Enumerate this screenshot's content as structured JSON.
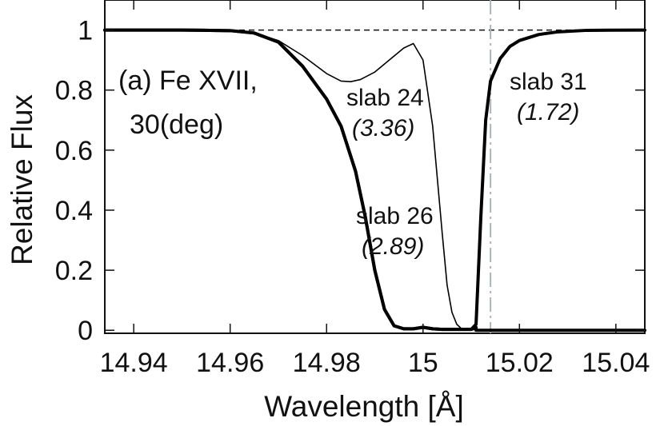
{
  "chart_data": {
    "type": "line",
    "xlabel": "Wavelength  [Å]",
    "ylabel": "Relative Flux",
    "xlim": [
      14.934,
      15.046
    ],
    "ylim": [
      -0.01,
      1.1
    ],
    "x_ticks": [
      14.94,
      14.96,
      14.98,
      15.0,
      15.02,
      15.04
    ],
    "x_tick_labels": [
      "14.94",
      "14.96",
      "14.98",
      "15",
      "15.02",
      "15.04"
    ],
    "y_ticks": [
      0,
      0.2,
      0.4,
      0.6,
      0.8,
      1.0
    ],
    "y_tick_labels": [
      "0",
      "0.2",
      "0.4",
      "0.6",
      "0.8",
      "1"
    ],
    "continuum": 1.0,
    "reference_line_x": 15.014,
    "panel_label_line1": "(a) Fe XVII,",
    "panel_label_line2": "30(deg)",
    "series": [
      {
        "name": "slab 24",
        "ratio": "(3.36)",
        "style": "thin",
        "x": [
          14.934,
          14.95,
          14.96,
          14.965,
          14.97,
          14.975,
          14.98,
          14.983,
          14.985,
          14.987,
          14.99,
          14.993,
          14.996,
          14.998,
          15.0,
          15.002,
          15.004,
          15.005,
          15.006,
          15.007,
          15.008,
          15.009,
          15.011,
          15.014,
          15.02,
          15.03,
          15.046
        ],
        "y": [
          1.0,
          1.0,
          0.998,
          0.99,
          0.965,
          0.915,
          0.855,
          0.83,
          0.828,
          0.835,
          0.86,
          0.9,
          0.94,
          0.955,
          0.9,
          0.68,
          0.32,
          0.15,
          0.06,
          0.02,
          0.005,
          0.002,
          0.002,
          0.002,
          0.002,
          0.002,
          0.002
        ]
      },
      {
        "name": "slab 26",
        "ratio": "(2.89)",
        "style": "bold",
        "x": [
          14.934,
          14.95,
          14.96,
          14.965,
          14.97,
          14.975,
          14.98,
          14.983,
          14.986,
          14.988,
          14.99,
          14.992,
          14.994,
          14.996,
          14.998,
          15.0,
          15.002,
          15.004,
          15.006,
          15.008,
          15.01,
          15.011,
          15.011,
          15.046
        ],
        "y": [
          1.0,
          1.0,
          0.998,
          0.99,
          0.96,
          0.88,
          0.77,
          0.68,
          0.53,
          0.38,
          0.2,
          0.07,
          0.015,
          0.005,
          0.005,
          0.01,
          0.005,
          0.003,
          0.003,
          0.003,
          0.003,
          0.01,
          0.0,
          0.0
        ]
      },
      {
        "name": "slab 31",
        "ratio": "(1.72)",
        "style": "bold",
        "x": [
          14.934,
          14.95,
          14.96,
          14.965,
          14.97,
          14.975,
          14.98,
          14.983,
          14.986,
          14.988,
          14.99,
          14.992,
          14.994,
          14.996,
          14.998,
          15.0,
          15.002,
          15.004,
          15.006,
          15.008,
          15.01,
          15.011,
          15.012,
          15.013,
          15.014,
          15.016,
          15.018,
          15.02,
          15.024,
          15.028,
          15.034,
          15.046
        ],
        "y": [
          1.0,
          1.0,
          0.998,
          0.99,
          0.96,
          0.88,
          0.77,
          0.68,
          0.53,
          0.38,
          0.2,
          0.07,
          0.015,
          0.005,
          0.005,
          0.01,
          0.005,
          0.003,
          0.003,
          0.003,
          0.003,
          0.02,
          0.38,
          0.7,
          0.83,
          0.905,
          0.945,
          0.965,
          0.985,
          0.994,
          0.999,
          1.0
        ]
      }
    ]
  }
}
